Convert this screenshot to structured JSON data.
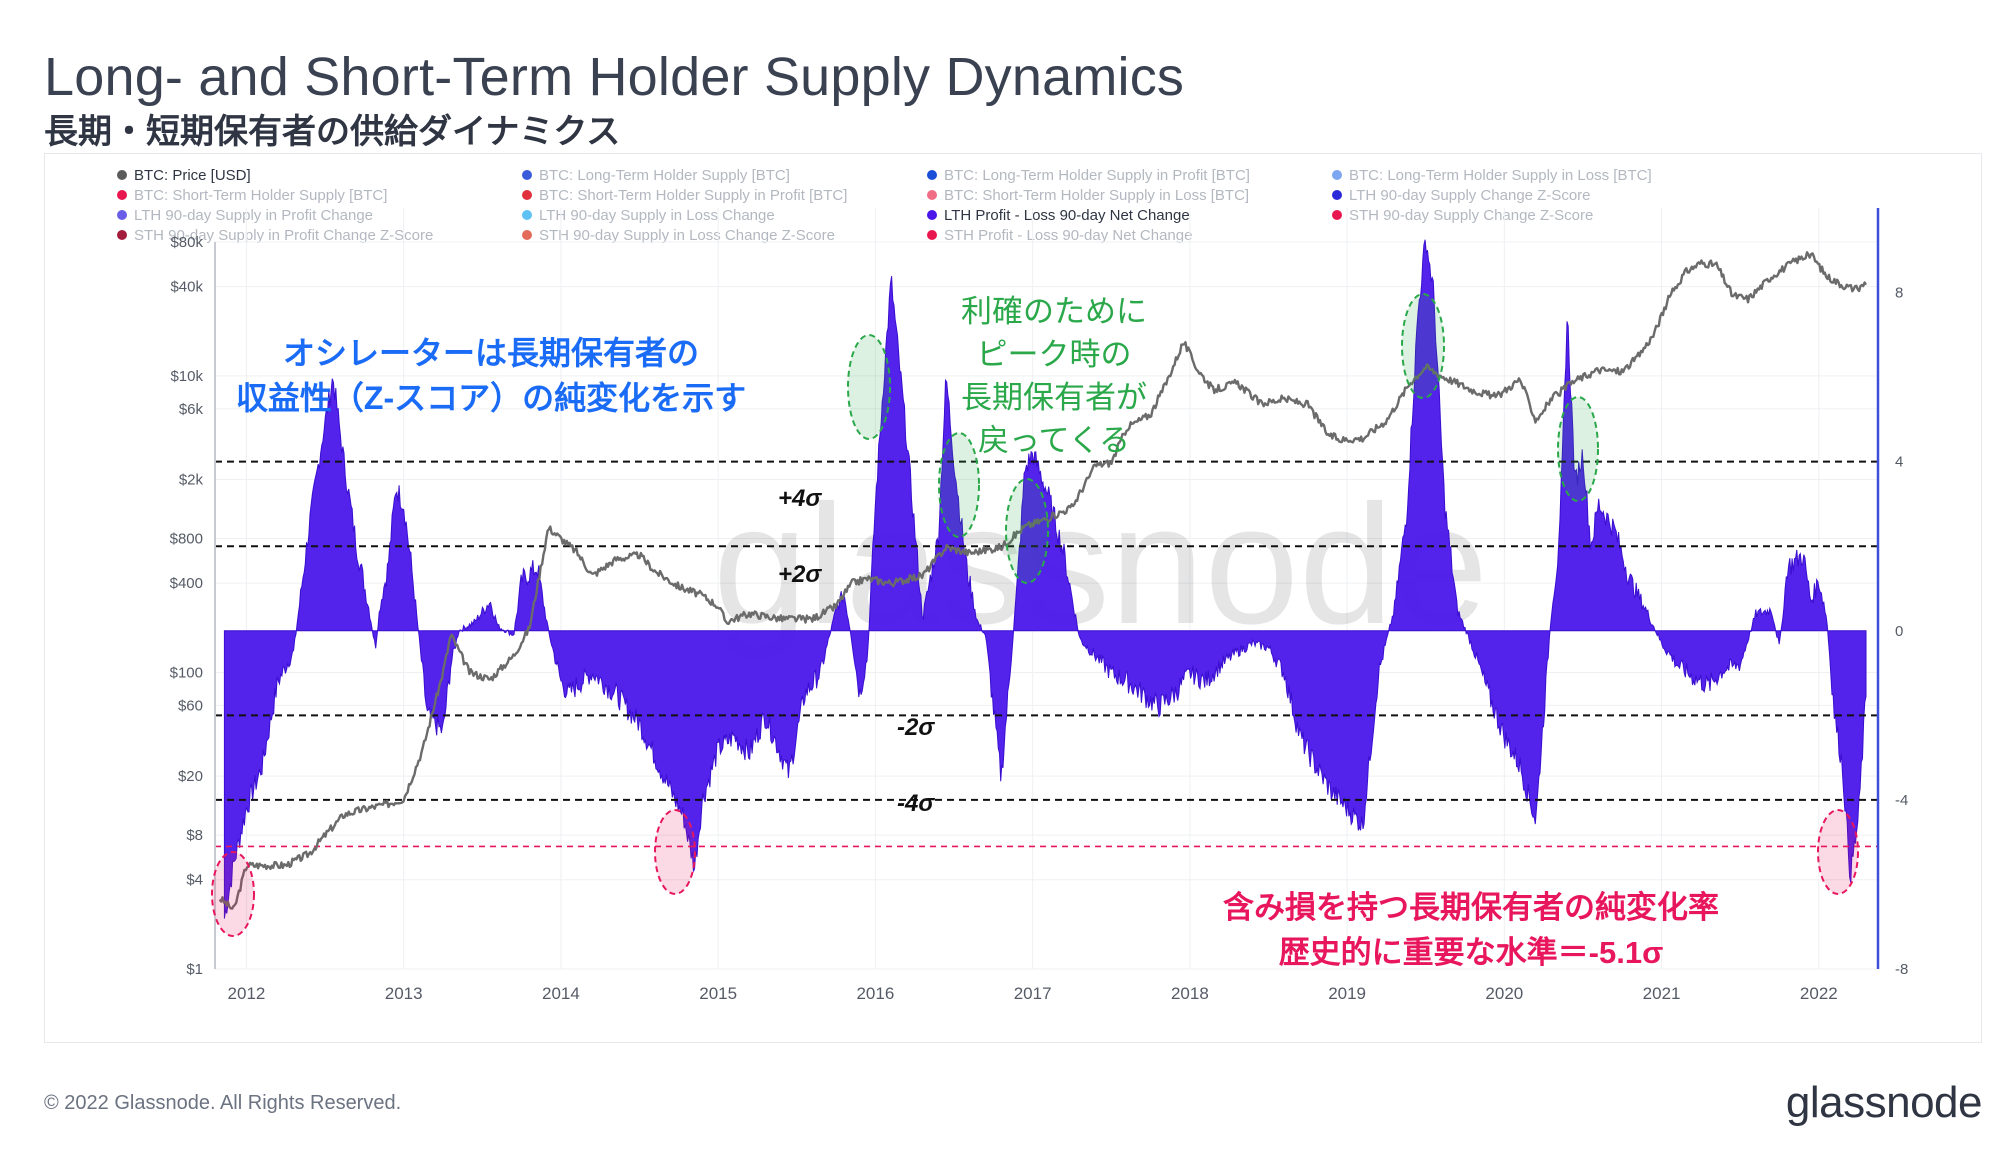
{
  "header": {
    "title": "Long- and Short-Term Holder Supply Dynamics",
    "subtitle": "長期・短期保有者の供給ダイナミクス"
  },
  "footer": {
    "copyright": "© 2022 Glassnode. All Rights Reserved.",
    "brand": "glassnode"
  },
  "watermark": "glassnode",
  "legend": [
    {
      "label": "BTC: Price [USD]",
      "color": "#5b5b5b",
      "active": true
    },
    {
      "label": "BTC: Long-Term Holder Supply [BTC]",
      "color": "#3b5bdb",
      "active": false
    },
    {
      "label": "BTC: Long-Term Holder Supply in Profit [BTC]",
      "color": "#1c4fd8",
      "active": false
    },
    {
      "label": "BTC: Long-Term Holder Supply in Loss [BTC]",
      "color": "#7ea6f0",
      "active": false
    },
    {
      "label": "BTC: Short-Term Holder Supply [BTC]",
      "color": "#e8174f",
      "active": false
    },
    {
      "label": "BTC: Short-Term Holder Supply in Profit [BTC]",
      "color": "#e0303d",
      "active": false
    },
    {
      "label": "BTC: Short-Term Holder Supply in Loss [BTC]",
      "color": "#f06d86",
      "active": false
    },
    {
      "label": "LTH 90-day Supply Change Z-Score",
      "color": "#2a2ad8",
      "active": false
    },
    {
      "label": "LTH 90-day Supply in Profit Change",
      "color": "#6a5ee8",
      "active": false
    },
    {
      "label": "LTH 90-day Supply in Loss Change",
      "color": "#5ec2f5",
      "active": false
    },
    {
      "label": "LTH Profit - Loss 90-day Net Change",
      "color": "#4a16ea",
      "active": true
    },
    {
      "label": "STH 90-day Supply Change Z-Score",
      "color": "#e8174f",
      "active": false
    },
    {
      "label": "STH 90-day Supply in Profit Change Z-Score",
      "color": "#a31c3c",
      "active": false
    },
    {
      "label": "STH 90-day Supply in Loss Change Z-Score",
      "color": "#e46a5c",
      "active": false
    },
    {
      "label": "STH Profit - Loss 90-day Net Change",
      "color": "#e8174f",
      "active": false
    }
  ],
  "annotations": {
    "blue_note": [
      "オシレーターは長期保有者の",
      "収益性（Z-スコア）の純変化を示す"
    ],
    "green_note": [
      "利確のために",
      "ピーク時の",
      "長期保有者が",
      "戻ってくる"
    ],
    "red_note": [
      "含み損を持つ長期保有者の純変化率",
      "歴史的に重要な水準＝-5.1σ"
    ],
    "sigma_labels": {
      "p4": "+4σ",
      "p2": "+2σ",
      "m2": "-2σ",
      "m4": "-4σ"
    },
    "colors": {
      "blue": "#1a6bf5",
      "green": "#2aa84a",
      "red": "#e8175d",
      "oscillator": "#4a16ea",
      "price": "#6b6b6b"
    }
  },
  "chart_data": {
    "type": "line",
    "title": "Long- and Short-Term Holder Supply Dynamics",
    "x_ticks": [
      "2012",
      "2013",
      "2014",
      "2015",
      "2016",
      "2017",
      "2018",
      "2019",
      "2020",
      "2021",
      "2022"
    ],
    "x_range": [
      2011.8,
      2022.37
    ],
    "left_axis": {
      "scale": "log",
      "range": [
        1,
        80000
      ],
      "ticks": [
        {
          "v": 80000,
          "label": "$80k"
        },
        {
          "v": 40000,
          "label": "$40k"
        },
        {
          "v": 10000,
          "label": "$10k"
        },
        {
          "v": 6000,
          "label": "$6k"
        },
        {
          "v": 2000,
          "label": "$2k"
        },
        {
          "v": 800,
          "label": "$800"
        },
        {
          "v": 400,
          "label": "$400"
        },
        {
          "v": 100,
          "label": "$100"
        },
        {
          "v": 60,
          "label": "$60"
        },
        {
          "v": 20,
          "label": "$20"
        },
        {
          "v": 8,
          "label": "$8"
        },
        {
          "v": 4,
          "label": "$4"
        },
        {
          "v": 1,
          "label": "$1"
        }
      ]
    },
    "right_axis": {
      "range": [
        -8,
        10
      ],
      "ticks": [
        {
          "v": 8,
          "label": "8"
        },
        {
          "v": 4,
          "label": "4"
        },
        {
          "v": 0,
          "label": "0"
        },
        {
          "v": -4,
          "label": "-4"
        },
        {
          "v": -8,
          "label": "-8"
        }
      ]
    },
    "thresholds": [
      4,
      2,
      -2,
      -4
    ],
    "critical_level": -5.1,
    "series": [
      {
        "name": "BTC: Price [USD]",
        "axis": "left",
        "x": [
          2011.83,
          2011.92,
          2012.0,
          2012.1,
          2012.25,
          2012.4,
          2012.5,
          2012.62,
          2012.75,
          2012.9,
          2013.0,
          2013.12,
          2013.25,
          2013.3,
          2013.42,
          2013.55,
          2013.7,
          2013.8,
          2013.92,
          2014.0,
          2014.1,
          2014.2,
          2014.35,
          2014.5,
          2014.6,
          2014.75,
          2014.9,
          2015.0,
          2015.05,
          2015.2,
          2015.4,
          2015.6,
          2015.75,
          2015.85,
          2015.95,
          2016.1,
          2016.3,
          2016.45,
          2016.6,
          2016.8,
          2016.95,
          2017.1,
          2017.25,
          2017.4,
          2017.5,
          2017.6,
          2017.75,
          2017.85,
          2017.96,
          2018.05,
          2018.15,
          2018.3,
          2018.45,
          2018.6,
          2018.75,
          2018.88,
          2018.96,
          2019.1,
          2019.25,
          2019.4,
          2019.5,
          2019.6,
          2019.8,
          2019.95,
          2020.1,
          2020.2,
          2020.3,
          2020.45,
          2020.6,
          2020.75,
          2020.85,
          2020.95,
          2021.05,
          2021.15,
          2021.25,
          2021.35,
          2021.45,
          2021.55,
          2021.7,
          2021.85,
          2021.95,
          2022.05,
          2022.15,
          2022.25,
          2022.3
        ],
        "values": [
          3,
          2.5,
          5,
          5,
          5,
          6,
          8,
          11,
          12,
          13,
          14,
          30,
          100,
          180,
          100,
          90,
          130,
          200,
          950,
          800,
          650,
          450,
          580,
          620,
          480,
          380,
          330,
          280,
          220,
          250,
          230,
          230,
          280,
          400,
          430,
          400,
          450,
          700,
          640,
          700,
          960,
          1100,
          1300,
          2500,
          2600,
          4500,
          5500,
          9000,
          17000,
          11000,
          8000,
          9000,
          6500,
          7000,
          6400,
          4000,
          3700,
          3800,
          5000,
          9000,
          11500,
          10000,
          8000,
          7200,
          9500,
          5000,
          7000,
          9300,
          11000,
          10700,
          13500,
          19000,
          34000,
          50000,
          58000,
          56000,
          35000,
          33000,
          47000,
          60000,
          66000,
          47000,
          41000,
          38000,
          43000
        ]
      },
      {
        "name": "LTH Profit - Loss 90-day Net Change",
        "axis": "right",
        "x": [
          2011.86,
          2011.92,
          2012.0,
          2012.1,
          2012.2,
          2012.3,
          2012.4,
          2012.48,
          2012.55,
          2012.62,
          2012.7,
          2012.78,
          2012.82,
          2012.85,
          2012.9,
          2012.95,
          2013.0,
          2013.05,
          2013.15,
          2013.25,
          2013.3,
          2013.35,
          2013.45,
          2013.55,
          2013.6,
          2013.7,
          2013.75,
          2013.85,
          2013.92,
          2014.0,
          2014.05,
          2014.1,
          2014.2,
          2014.35,
          2014.5,
          2014.6,
          2014.7,
          2014.78,
          2014.85,
          2014.9,
          2015.0,
          2015.1,
          2015.2,
          2015.3,
          2015.45,
          2015.55,
          2015.65,
          2015.75,
          2015.8,
          2015.85,
          2015.9,
          2015.95,
          2016.0,
          2016.05,
          2016.1,
          2016.2,
          2016.3,
          2016.4,
          2016.45,
          2016.5,
          2016.58,
          2016.65,
          2016.7,
          2016.8,
          2016.9,
          2016.95,
          2017.0,
          2017.1,
          2017.2,
          2017.3,
          2017.4,
          2017.5,
          2017.6,
          2017.7,
          2017.8,
          2017.9,
          2018.0,
          2018.1,
          2018.2,
          2018.3,
          2018.4,
          2018.5,
          2018.6,
          2018.7,
          2018.8,
          2018.9,
          2019.0,
          2019.1,
          2019.2,
          2019.3,
          2019.38,
          2019.45,
          2019.5,
          2019.55,
          2019.62,
          2019.7,
          2019.8,
          2019.9,
          2020.0,
          2020.1,
          2020.2,
          2020.3,
          2020.35,
          2020.4,
          2020.45,
          2020.5,
          2020.55,
          2020.6,
          2020.7,
          2020.8,
          2020.9,
          2021.0,
          2021.1,
          2021.2,
          2021.3,
          2021.4,
          2021.5,
          2021.6,
          2021.7,
          2021.75,
          2021.8,
          2021.9,
          2021.95,
          2022.0,
          2022.05,
          2022.1,
          2022.15,
          2022.2,
          2022.25,
          2022.3
        ],
        "values": [
          -6.8,
          -5.5,
          -4.2,
          -3.2,
          -1.2,
          -0.5,
          2.5,
          4.5,
          6.0,
          4.0,
          2.0,
          0.5,
          -0.4,
          0.6,
          1.5,
          3.4,
          3.0,
          1.5,
          -2.0,
          -2.4,
          -0.8,
          0,
          0.2,
          0.7,
          0.1,
          -0.1,
          1.2,
          1.5,
          0,
          -1.2,
          -1.5,
          -1.3,
          -1.0,
          -1.5,
          -2.2,
          -3.0,
          -3.8,
          -4.4,
          -5.6,
          -4.0,
          -2.8,
          -2.5,
          -2.9,
          -2.0,
          -3.4,
          -1.5,
          -1.0,
          0.5,
          0.9,
          -0.2,
          -1.5,
          -0.6,
          3.0,
          5.8,
          8.3,
          4.5,
          0.3,
          2.2,
          6.0,
          4.0,
          1.5,
          0.2,
          -0.1,
          -3.5,
          1.0,
          3.8,
          4.2,
          3.2,
          1.8,
          -0.2,
          -0.6,
          -1.0,
          -1.2,
          -1.5,
          -1.8,
          -1.5,
          -1.0,
          -1.2,
          -0.8,
          -0.5,
          -0.3,
          -0.4,
          -1.0,
          -2.5,
          -3.2,
          -3.8,
          -4.2,
          -4.6,
          -1.0,
          0.5,
          2.8,
          7.5,
          9.3,
          8.0,
          3.0,
          0.5,
          -0.4,
          -1.5,
          -2.5,
          -3.2,
          -4.5,
          0.5,
          2.0,
          7.5,
          3.5,
          4.2,
          2.0,
          3.0,
          2.4,
          1.2,
          0.5,
          -0.3,
          -0.8,
          -1.1,
          -1.3,
          -0.9,
          -0.8,
          0.4,
          0.5,
          -0.4,
          1.5,
          1.8,
          0.7,
          1.2,
          0.3,
          -2.0,
          -3.2,
          -5.8,
          -4.5,
          -1.5
        ]
      }
    ]
  }
}
